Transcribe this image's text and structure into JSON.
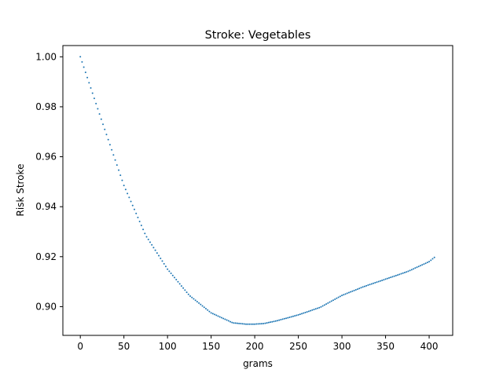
{
  "chart_data": {
    "type": "scatter",
    "title": "Stroke: Vegetables",
    "xlabel": "grams",
    "ylabel": "Risk Stroke",
    "xlim": [
      -20,
      427
    ],
    "ylim": [
      0.8885,
      1.0045
    ],
    "xticks": [
      0,
      50,
      100,
      150,
      200,
      250,
      300,
      350,
      400
    ],
    "yticks": [
      0.9,
      0.92,
      0.94,
      0.96,
      0.98,
      1.0
    ],
    "ytick_labels": [
      "0.90",
      "0.92",
      "0.94",
      "0.96",
      "0.98",
      "1.00"
    ],
    "grid": false,
    "marker_color": "#1f77b4",
    "x_range": [
      0,
      407
    ],
    "x_step": 2,
    "curve_knots": {
      "x": [
        0,
        25,
        50,
        75,
        100,
        125,
        150,
        175,
        190,
        200,
        210,
        225,
        250,
        275,
        300,
        325,
        350,
        375,
        400,
        407
      ],
      "y": [
        1.0,
        0.974,
        0.9485,
        0.9285,
        0.915,
        0.9045,
        0.8975,
        0.8935,
        0.893,
        0.893,
        0.8932,
        0.8943,
        0.8967,
        0.8997,
        0.9045,
        0.908,
        0.911,
        0.914,
        0.918,
        0.92
      ]
    }
  }
}
